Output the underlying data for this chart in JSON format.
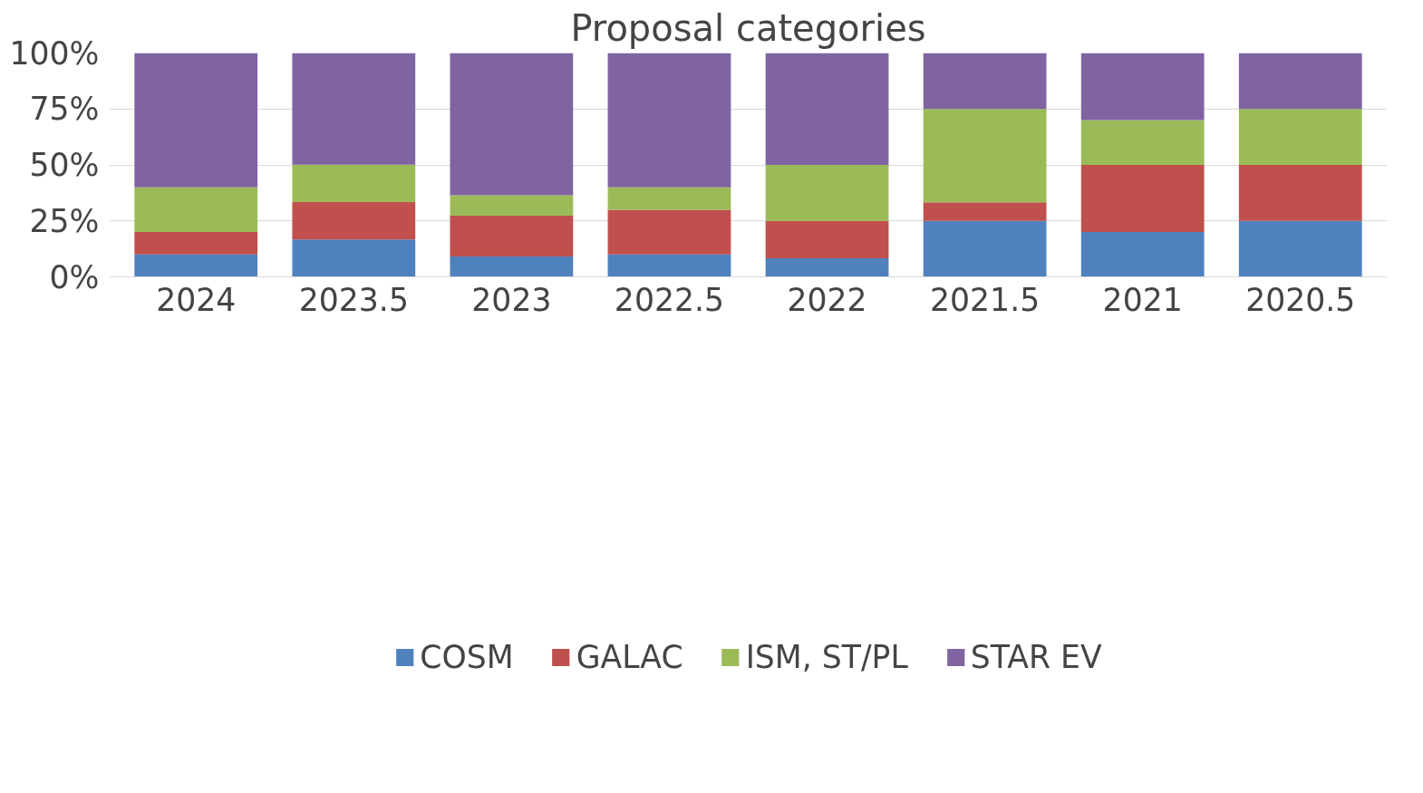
{
  "chart_data": {
    "type": "bar",
    "title": "Proposal categories",
    "stacked": true,
    "categories": [
      "2024",
      "2023.5",
      "2023",
      "2022.5",
      "2022",
      "2021.5",
      "2021",
      "2020.5"
    ],
    "series": [
      {
        "name": "COSM",
        "color": "#4f81bd",
        "values": [
          10,
          16.7,
          9.1,
          10,
          8.3,
          25,
          20,
          25
        ]
      },
      {
        "name": "GALAC",
        "color": "#c0504d",
        "values": [
          10,
          16.7,
          18.2,
          20,
          16.7,
          8.3,
          30,
          25
        ]
      },
      {
        "name": "ISM, ST/PL",
        "color": "#9bbb59",
        "values": [
          20,
          16.7,
          9.1,
          10,
          25,
          41.7,
          20,
          25
        ]
      },
      {
        "name": "STAR EV",
        "color": "#8064a2",
        "values": [
          60,
          50,
          63.6,
          60,
          50,
          25,
          30,
          25
        ]
      }
    ],
    "ylim": [
      0,
      100
    ],
    "yticks": [
      {
        "value": 0,
        "label": "0%"
      },
      {
        "value": 25,
        "label": "25%"
      },
      {
        "value": 50,
        "label": "50%"
      },
      {
        "value": 75,
        "label": "75%"
      },
      {
        "value": 100,
        "label": "100%"
      }
    ],
    "grid": "y",
    "legend": "bottom"
  }
}
